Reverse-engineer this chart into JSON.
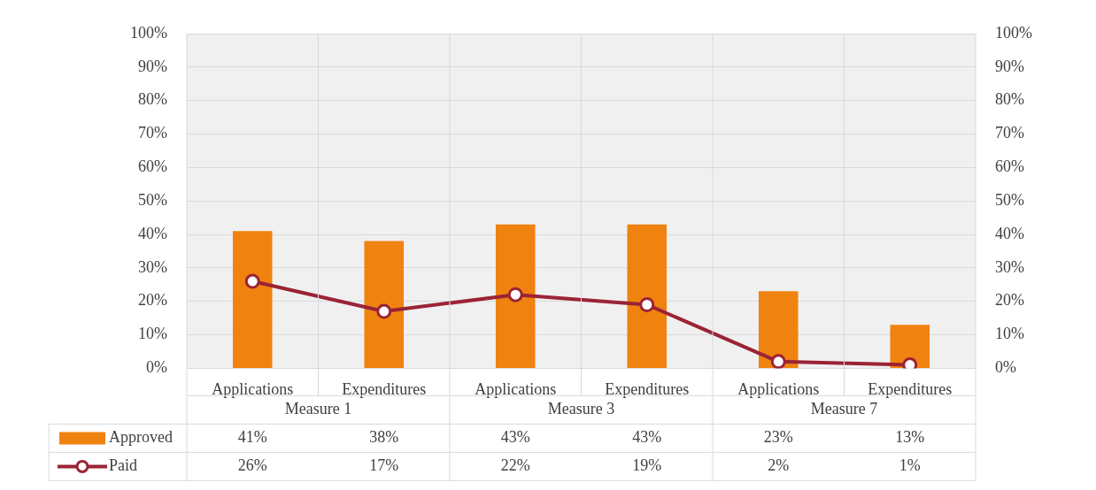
{
  "chart_data": {
    "type": "bar",
    "categories": [
      "Applications",
      "Expenditures",
      "Applications",
      "Expenditures",
      "Applications",
      "Expenditures"
    ],
    "annotations": [
      "Measure 1",
      "Measure 3",
      "Measure 7"
    ],
    "series": [
      {
        "name": "Approved",
        "color": "#f0820f",
        "values": [
          41,
          38,
          43,
          43,
          23,
          13
        ],
        "value_labels": [
          "41%",
          "38%",
          "43%",
          "43%",
          "23%",
          "13%"
        ]
      },
      {
        "name": "Paid",
        "type": "line",
        "color": "#9b2335",
        "values": [
          26,
          17,
          22,
          19,
          2,
          1
        ],
        "value_labels": [
          "26%",
          "17%",
          "22%",
          "19%",
          "2%",
          "1%"
        ]
      }
    ],
    "ylim": [
      0,
      100
    ],
    "yticks": [
      {
        "value": 0,
        "label": "0%"
      },
      {
        "value": 10,
        "label": "10%"
      },
      {
        "value": 20,
        "label": "20%"
      },
      {
        "value": 30,
        "label": "30%"
      },
      {
        "value": 40,
        "label": "40%"
      },
      {
        "value": 50,
        "label": "50%"
      },
      {
        "value": 60,
        "label": "60%"
      },
      {
        "value": 70,
        "label": "70%"
      },
      {
        "value": 80,
        "label": "80%"
      },
      {
        "value": 90,
        "label": "90%"
      },
      {
        "value": 100,
        "label": "100%"
      }
    ],
    "y2lim": [
      0,
      100
    ],
    "y2ticks": [
      {
        "value": 0,
        "label": "0%"
      },
      {
        "value": 10,
        "label": "10%"
      },
      {
        "value": 20,
        "label": "20%"
      },
      {
        "value": 30,
        "label": "30%"
      },
      {
        "value": 40,
        "label": "40%"
      },
      {
        "value": 50,
        "label": "50%"
      },
      {
        "value": 60,
        "label": "60%"
      },
      {
        "value": 70,
        "label": "70%"
      },
      {
        "value": 80,
        "label": "80%"
      },
      {
        "value": 90,
        "label": "90%"
      },
      {
        "value": 100,
        "label": "100%"
      }
    ],
    "grid": true,
    "legend": "bottom left",
    "marker": "circle",
    "line_style": "solid"
  }
}
